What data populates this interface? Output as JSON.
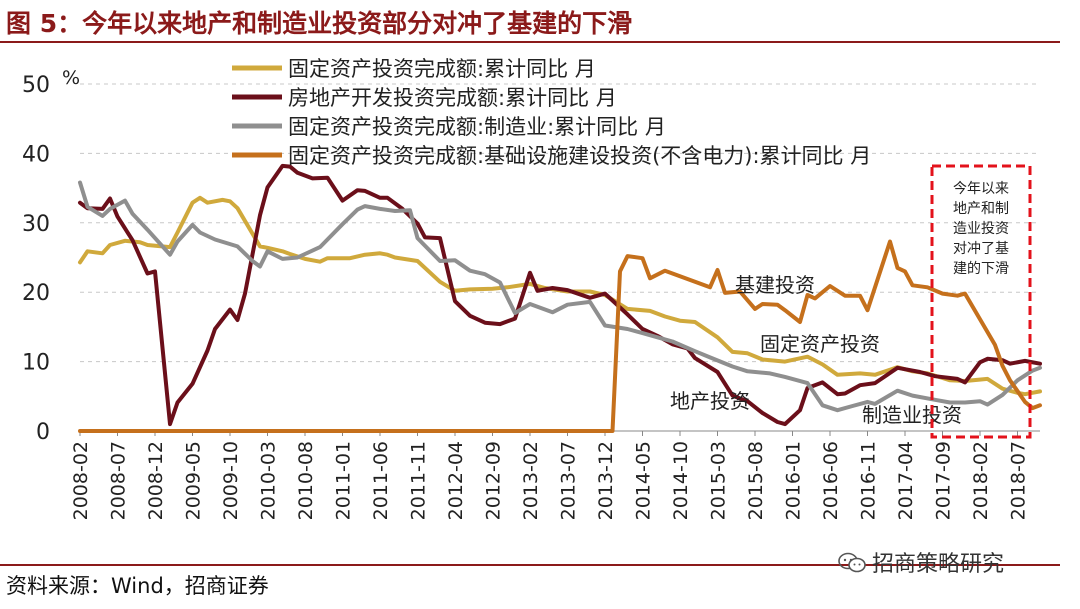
{
  "figure": {
    "title": "图 5：今年以来地产和制造业投资部分对冲了基建的下滑",
    "source": "资料来源：Wind，招商证券",
    "watermark": "招商策略研究"
  },
  "chart_data": {
    "type": "line",
    "ylabel": "%",
    "ylim": [
      0,
      50
    ],
    "yticks": [
      0,
      10,
      20,
      30,
      40,
      50
    ],
    "x_start": "2008-02",
    "x_end": "2018-10",
    "xticks": [
      "2008-02",
      "2008-07",
      "2008-12",
      "2009-05",
      "2009-10",
      "2010-03",
      "2010-08",
      "2011-01",
      "2011-06",
      "2011-11",
      "2012-04",
      "2012-09",
      "2013-02",
      "2013-07",
      "2013-12",
      "2014-05",
      "2014-10",
      "2015-03",
      "2015-08",
      "2016-01",
      "2016-06",
      "2016-11",
      "2017-04",
      "2017-09",
      "2018-02",
      "2018-07"
    ],
    "grid": "horizontal dashed",
    "series": [
      {
        "name": "固定资产投资完成额:累计同比 月",
        "color": "#d0a93c",
        "points": [
          [
            "2008-02",
            24.3
          ],
          [
            "2008-03",
            25.9
          ],
          [
            "2008-05",
            25.6
          ],
          [
            "2008-06",
            26.8
          ],
          [
            "2008-08",
            27.4
          ],
          [
            "2008-10",
            27.2
          ],
          [
            "2008-11",
            26.8
          ],
          [
            "2009-02",
            26.5
          ],
          [
            "2009-03",
            28.6
          ],
          [
            "2009-05",
            32.9
          ],
          [
            "2009-06",
            33.6
          ],
          [
            "2009-07",
            32.9
          ],
          [
            "2009-09",
            33.3
          ],
          [
            "2009-10",
            33.1
          ],
          [
            "2009-11",
            32.1
          ],
          [
            "2010-02",
            26.6
          ],
          [
            "2010-03",
            26.4
          ],
          [
            "2010-05",
            25.9
          ],
          [
            "2010-06",
            25.5
          ],
          [
            "2010-08",
            24.8
          ],
          [
            "2010-10",
            24.4
          ],
          [
            "2010-11",
            24.9
          ],
          [
            "2011-02",
            24.9
          ],
          [
            "2011-04",
            25.4
          ],
          [
            "2011-06",
            25.6
          ],
          [
            "2011-07",
            25.4
          ],
          [
            "2011-08",
            25.0
          ],
          [
            "2011-11",
            24.5
          ],
          [
            "2012-02",
            21.5
          ],
          [
            "2012-04",
            20.2
          ],
          [
            "2012-06",
            20.4
          ],
          [
            "2012-09",
            20.5
          ],
          [
            "2012-11",
            20.7
          ],
          [
            "2013-02",
            21.2
          ],
          [
            "2013-04",
            20.6
          ],
          [
            "2013-07",
            20.1
          ],
          [
            "2013-10",
            20.1
          ],
          [
            "2013-12",
            19.6
          ],
          [
            "2014-03",
            17.6
          ],
          [
            "2014-06",
            17.3
          ],
          [
            "2014-08",
            16.5
          ],
          [
            "2014-10",
            15.9
          ],
          [
            "2014-12",
            15.7
          ],
          [
            "2015-03",
            13.5
          ],
          [
            "2015-05",
            11.4
          ],
          [
            "2015-07",
            11.2
          ],
          [
            "2015-09",
            10.3
          ],
          [
            "2015-12",
            10.0
          ],
          [
            "2016-03",
            10.7
          ],
          [
            "2016-05",
            9.6
          ],
          [
            "2016-07",
            8.1
          ],
          [
            "2016-10",
            8.3
          ],
          [
            "2016-12",
            8.1
          ],
          [
            "2017-03",
            9.2
          ],
          [
            "2017-05",
            8.6
          ],
          [
            "2017-07",
            8.3
          ],
          [
            "2017-10",
            7.3
          ],
          [
            "2017-12",
            7.2
          ],
          [
            "2018-03",
            7.5
          ],
          [
            "2018-05",
            6.1
          ],
          [
            "2018-07",
            5.5
          ],
          [
            "2018-08",
            5.3
          ],
          [
            "2018-10",
            5.7
          ]
        ]
      },
      {
        "name": "房地产开发投资完成额:累计同比 月",
        "color": "#6b0f1a",
        "points": [
          [
            "2008-02",
            32.9
          ],
          [
            "2008-03",
            32.1
          ],
          [
            "2008-05",
            32.0
          ],
          [
            "2008-06",
            33.5
          ],
          [
            "2008-07",
            30.9
          ],
          [
            "2008-09",
            27.5
          ],
          [
            "2008-11",
            22.7
          ],
          [
            "2008-12",
            23.0
          ],
          [
            "2009-02",
            1.0
          ],
          [
            "2009-03",
            4.1
          ],
          [
            "2009-05",
            6.8
          ],
          [
            "2009-07",
            11.6
          ],
          [
            "2009-08",
            14.7
          ],
          [
            "2009-10",
            17.5
          ],
          [
            "2009-11",
            16.0
          ],
          [
            "2009-12",
            19.8
          ],
          [
            "2010-02",
            31.1
          ],
          [
            "2010-03",
            35.1
          ],
          [
            "2010-05",
            38.2
          ],
          [
            "2010-06",
            38.1
          ],
          [
            "2010-07",
            37.2
          ],
          [
            "2010-09",
            36.4
          ],
          [
            "2010-11",
            36.5
          ],
          [
            "2011-01",
            33.2
          ],
          [
            "2011-03",
            34.7
          ],
          [
            "2011-04",
            34.6
          ],
          [
            "2011-06",
            33.6
          ],
          [
            "2011-07",
            33.6
          ],
          [
            "2011-09",
            32.0
          ],
          [
            "2011-11",
            29.9
          ],
          [
            "2011-12",
            27.9
          ],
          [
            "2012-02",
            27.8
          ],
          [
            "2012-04",
            18.7
          ],
          [
            "2012-06",
            16.6
          ],
          [
            "2012-08",
            15.6
          ],
          [
            "2012-10",
            15.4
          ],
          [
            "2012-12",
            16.2
          ],
          [
            "2013-02",
            22.8
          ],
          [
            "2013-03",
            20.2
          ],
          [
            "2013-05",
            20.6
          ],
          [
            "2013-07",
            20.3
          ],
          [
            "2013-10",
            19.2
          ],
          [
            "2013-12",
            19.8
          ],
          [
            "2014-03",
            16.8
          ],
          [
            "2014-05",
            14.7
          ],
          [
            "2014-07",
            13.7
          ],
          [
            "2014-09",
            12.5
          ],
          [
            "2014-11",
            11.9
          ],
          [
            "2014-12",
            10.5
          ],
          [
            "2015-03",
            8.5
          ],
          [
            "2015-05",
            5.1
          ],
          [
            "2015-07",
            4.3
          ],
          [
            "2015-09",
            2.6
          ],
          [
            "2015-11",
            1.3
          ],
          [
            "2015-12",
            1.0
          ],
          [
            "2016-02",
            3.0
          ],
          [
            "2016-03",
            6.2
          ],
          [
            "2016-05",
            7.0
          ],
          [
            "2016-07",
            5.3
          ],
          [
            "2016-08",
            5.4
          ],
          [
            "2016-10",
            6.6
          ],
          [
            "2016-12",
            6.9
          ],
          [
            "2017-03",
            9.1
          ],
          [
            "2017-06",
            8.5
          ],
          [
            "2017-08",
            7.9
          ],
          [
            "2017-11",
            7.5
          ],
          [
            "2017-12",
            7.0
          ],
          [
            "2018-02",
            9.9
          ],
          [
            "2018-03",
            10.4
          ],
          [
            "2018-05",
            10.2
          ],
          [
            "2018-06",
            9.7
          ],
          [
            "2018-08",
            10.1
          ],
          [
            "2018-10",
            9.7
          ]
        ]
      },
      {
        "name": "固定资产投资完成额:制造业:累计同比 月",
        "color": "#8f8f8f",
        "points": [
          [
            "2008-02",
            35.8
          ],
          [
            "2008-03",
            32.3
          ],
          [
            "2008-05",
            31.0
          ],
          [
            "2008-06",
            32.0
          ],
          [
            "2008-08",
            33.2
          ],
          [
            "2008-09",
            31.3
          ],
          [
            "2008-11",
            29.0
          ],
          [
            "2009-02",
            25.4
          ],
          [
            "2009-03",
            27.3
          ],
          [
            "2009-05",
            29.7
          ],
          [
            "2009-06",
            28.6
          ],
          [
            "2009-08",
            27.6
          ],
          [
            "2009-11",
            26.6
          ],
          [
            "2010-01",
            24.5
          ],
          [
            "2010-02",
            23.7
          ],
          [
            "2010-03",
            25.9
          ],
          [
            "2010-05",
            24.8
          ],
          [
            "2010-07",
            25.0
          ],
          [
            "2010-08",
            25.5
          ],
          [
            "2010-10",
            26.5
          ],
          [
            "2011-01",
            29.8
          ],
          [
            "2011-03",
            31.9
          ],
          [
            "2011-04",
            32.4
          ],
          [
            "2011-06",
            32.0
          ],
          [
            "2011-08",
            31.7
          ],
          [
            "2011-10",
            31.8
          ],
          [
            "2011-11",
            27.8
          ],
          [
            "2012-02",
            24.5
          ],
          [
            "2012-04",
            24.6
          ],
          [
            "2012-06",
            23.1
          ],
          [
            "2012-08",
            22.6
          ],
          [
            "2012-10",
            21.4
          ],
          [
            "2012-12",
            17.0
          ],
          [
            "2013-02",
            18.3
          ],
          [
            "2013-05",
            17.1
          ],
          [
            "2013-07",
            18.2
          ],
          [
            "2013-10",
            18.6
          ],
          [
            "2013-12",
            15.2
          ],
          [
            "2014-03",
            14.7
          ],
          [
            "2014-05",
            14.1
          ],
          [
            "2014-07",
            13.5
          ],
          [
            "2014-09",
            12.9
          ],
          [
            "2014-12",
            11.5
          ],
          [
            "2015-02",
            10.6
          ],
          [
            "2015-05",
            9.3
          ],
          [
            "2015-07",
            8.6
          ],
          [
            "2015-10",
            8.3
          ],
          [
            "2015-12",
            7.8
          ],
          [
            "2016-03",
            6.9
          ],
          [
            "2016-05",
            3.7
          ],
          [
            "2016-07",
            3.0
          ],
          [
            "2016-09",
            3.6
          ],
          [
            "2016-11",
            4.2
          ],
          [
            "2016-12",
            3.9
          ],
          [
            "2017-03",
            5.8
          ],
          [
            "2017-05",
            5.1
          ],
          [
            "2017-08",
            4.5
          ],
          [
            "2017-10",
            4.1
          ],
          [
            "2017-12",
            4.1
          ],
          [
            "2018-02",
            4.3
          ],
          [
            "2018-03",
            3.8
          ],
          [
            "2018-05",
            5.2
          ],
          [
            "2018-07",
            7.3
          ],
          [
            "2018-09",
            8.7
          ],
          [
            "2018-10",
            9.1
          ]
        ]
      },
      {
        "name": "固定资产投资完成额:基础设施建设投资(不含电力):累计同比 月",
        "color": "#c5701c",
        "points": [
          [
            "2008-02",
            0
          ],
          [
            "2014-01",
            0
          ],
          [
            "2014-02",
            23.0
          ],
          [
            "2014-03",
            25.2
          ],
          [
            "2014-05",
            24.9
          ],
          [
            "2014-06",
            22.0
          ],
          [
            "2014-08",
            23.1
          ],
          [
            "2014-10",
            22.3
          ],
          [
            "2014-12",
            21.5
          ],
          [
            "2015-02",
            20.7
          ],
          [
            "2015-03",
            23.2
          ],
          [
            "2015-04",
            19.9
          ],
          [
            "2015-06",
            20.1
          ],
          [
            "2015-08",
            17.6
          ],
          [
            "2015-09",
            18.3
          ],
          [
            "2015-11",
            18.2
          ],
          [
            "2015-12",
            17.4
          ],
          [
            "2016-02",
            15.7
          ],
          [
            "2016-03",
            19.6
          ],
          [
            "2016-04",
            19.1
          ],
          [
            "2016-06",
            20.9
          ],
          [
            "2016-08",
            19.5
          ],
          [
            "2016-10",
            19.5
          ],
          [
            "2016-11",
            17.4
          ],
          [
            "2017-02",
            27.3
          ],
          [
            "2017-03",
            23.5
          ],
          [
            "2017-04",
            23.0
          ],
          [
            "2017-05",
            21.0
          ],
          [
            "2017-07",
            20.7
          ],
          [
            "2017-09",
            19.8
          ],
          [
            "2017-11",
            19.5
          ],
          [
            "2017-12",
            19.8
          ],
          [
            "2018-02",
            16.1
          ],
          [
            "2018-04",
            12.4
          ],
          [
            "2018-05",
            9.4
          ],
          [
            "2018-06",
            7.3
          ],
          [
            "2018-08",
            4.2
          ],
          [
            "2018-09",
            3.3
          ],
          [
            "2018-10",
            3.7
          ]
        ]
      }
    ],
    "annotations": {
      "infra_label": "基建投资",
      "fai_label": "固定资产投资",
      "re_label": "地产投资",
      "mfg_label": "制造业投资",
      "box_lines": [
        "今年以来",
        "地产和制",
        "造业投资",
        "对冲了基",
        "建的下滑"
      ]
    }
  }
}
